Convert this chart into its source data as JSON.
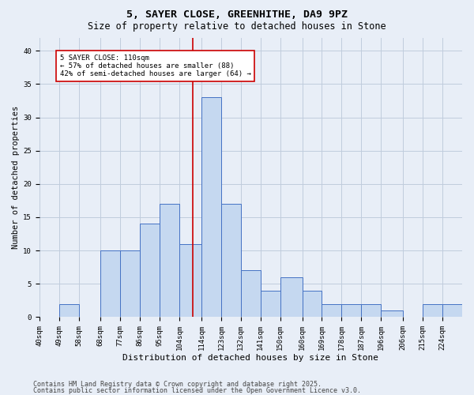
{
  "title1": "5, SAYER CLOSE, GREENHITHE, DA9 9PZ",
  "title2": "Size of property relative to detached houses in Stone",
  "xlabel": "Distribution of detached houses by size in Stone",
  "ylabel": "Number of detached properties",
  "bins": [
    40,
    49,
    58,
    68,
    77,
    86,
    95,
    104,
    114,
    123,
    132,
    141,
    150,
    160,
    169,
    178,
    187,
    196,
    206,
    215,
    224,
    233
  ],
  "bin_labels": [
    "40sqm",
    "49sqm",
    "58sqm",
    "68sqm",
    "77sqm",
    "86sqm",
    "95sqm",
    "104sqm",
    "114sqm",
    "123sqm",
    "132sqm",
    "141sqm",
    "150sqm",
    "160sqm",
    "169sqm",
    "178sqm",
    "187sqm",
    "196sqm",
    "206sqm",
    "215sqm",
    "224sqm"
  ],
  "counts": [
    0,
    2,
    0,
    10,
    10,
    14,
    17,
    11,
    33,
    17,
    7,
    4,
    6,
    4,
    2,
    2,
    2,
    1,
    0,
    2,
    2
  ],
  "bar_color": "#c5d8f0",
  "bar_edge_color": "#4472c4",
  "property_line_x": 110,
  "annotation_text": "5 SAYER CLOSE: 110sqm\n← 57% of detached houses are smaller (88)\n42% of semi-detached houses are larger (64) →",
  "annotation_box_color": "#ffffff",
  "annotation_box_edge": "#cc0000",
  "vline_color": "#cc0000",
  "ylim": [
    0,
    42
  ],
  "yticks": [
    0,
    5,
    10,
    15,
    20,
    25,
    30,
    35,
    40
  ],
  "grid_color": "#c0ccdd",
  "bg_color": "#e8eef7",
  "footer1": "Contains HM Land Registry data © Crown copyright and database right 2025.",
  "footer2": "Contains public sector information licensed under the Open Government Licence v3.0.",
  "title1_fontsize": 9.5,
  "title2_fontsize": 8.5,
  "tick_fontsize": 6.5,
  "xlabel_fontsize": 8,
  "ylabel_fontsize": 7.5,
  "annot_fontsize": 6.5,
  "footer_fontsize": 6.0
}
